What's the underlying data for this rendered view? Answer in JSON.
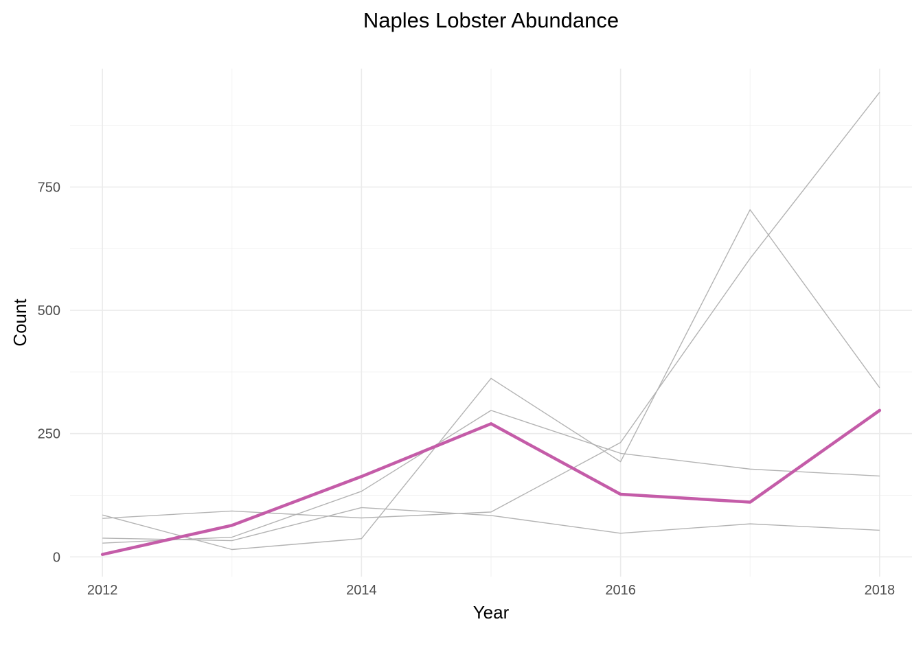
{
  "chart_data": {
    "type": "line",
    "title": "Naples Lobster Abundance",
    "xlabel": "Year",
    "ylabel": "Count",
    "xlim": [
      2011.75,
      2018.25
    ],
    "ylim": [
      -40,
      990
    ],
    "x_ticks": [
      2012,
      2014,
      2016,
      2018
    ],
    "y_ticks": [
      0,
      250,
      500,
      750
    ],
    "grid": true,
    "legend": "none",
    "x": [
      2012,
      2013,
      2014,
      2015,
      2016,
      2017,
      2018
    ],
    "series": [
      {
        "values": [
          85,
          15,
          37,
          362,
          193,
          704,
          343
        ],
        "highlight": false
      },
      {
        "values": [
          28,
          40,
          133,
          297,
          210,
          178,
          164
        ],
        "highlight": false
      },
      {
        "values": [
          38,
          33,
          100,
          84,
          48,
          67,
          54
        ],
        "highlight": false
      },
      {
        "values": [
          78,
          93,
          79,
          91,
          232,
          605,
          942
        ],
        "highlight": false
      },
      {
        "values": [
          5,
          64,
          163,
          270,
          127,
          111,
          297
        ],
        "highlight": true
      }
    ],
    "colors": {
      "highlight": "#c45ca8",
      "background": "#b3b3b3"
    }
  }
}
